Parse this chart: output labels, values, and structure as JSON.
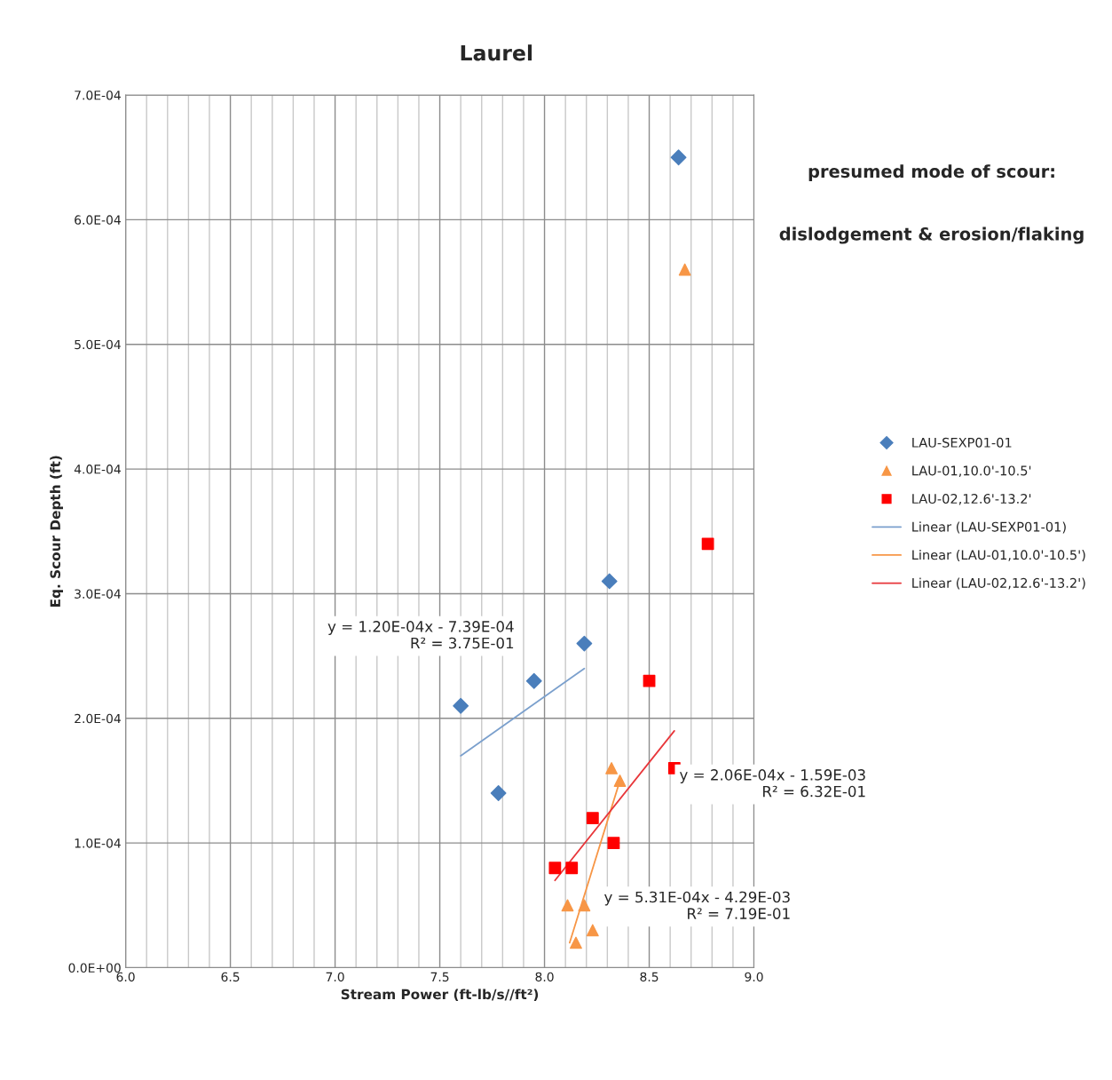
{
  "chart_data": {
    "type": "scatter",
    "title": "Laurel",
    "xlabel": "Stream Power (ft-lb/s//ft²)",
    "ylabel": "Eq. Scour Depth (ft)",
    "xlim": [
      6.0,
      9.0
    ],
    "xticks": [
      {
        "value": 6.0,
        "label": "6.0"
      },
      6.5,
      {
        "value": 7.0,
        "label": "7.0"
      },
      7.5,
      {
        "value": 8.0,
        "label": "8.0"
      },
      8.5,
      {
        "value": 9.0,
        "label": "9.0"
      }
    ],
    "ylim": [
      0,
      0.0007
    ],
    "yticks": [
      {
        "value": 0,
        "label": "0.0E+00"
      },
      {
        "value": 0.0001,
        "label": "1.0E-04"
      },
      {
        "value": 0.0002,
        "label": "2.0E-04"
      },
      {
        "value": 0.0003,
        "label": "3.0E-04"
      },
      {
        "value": 0.0004,
        "label": "4.0E-04"
      },
      {
        "value": 0.0005,
        "label": "5.0E-04"
      },
      {
        "value": 0.0006,
        "label": "6.0E-04"
      },
      {
        "value": 0.0007,
        "label": "7.0E-04"
      }
    ],
    "grid": true,
    "legend": "right",
    "series": [
      {
        "name": "LAU-SEXP01-01",
        "marker": "diamond",
        "color": "#4a7ebb",
        "x": [
          7.6,
          7.78,
          7.95,
          8.19
        ],
        "values": [
          0.00021,
          0.00014,
          0.00023,
          0.00026
        ]
      },
      {
        "name": "LAU-01,10.0'-10.5'",
        "marker": "triangle",
        "color": "#f79646",
        "x": [
          8.32,
          8.36,
          8.11,
          8.19,
          8.15,
          8.23
        ],
        "values": [
          0.00016,
          0.00015,
          5e-05,
          5e-05,
          2e-05,
          3e-05
        ]
      },
      {
        "name": "LAU-02,12.6'-13.2'",
        "marker": "square",
        "color": "#ff0000",
        "x": [
          8.05,
          8.13,
          8.23,
          8.33,
          8.5,
          8.62,
          8.78
        ],
        "values": [
          8e-05,
          8e-05,
          0.00012,
          0.0001,
          0.00023,
          0.00016,
          0.00034
        ]
      },
      {
        "marker": "diamond",
        "color": "#4a7ebb",
        "x": [
          8.31,
          8.64
        ],
        "values": [
          0.00031,
          0.00065
        ]
      },
      {
        "marker": "triangle",
        "color": "#f79646",
        "x": [
          8.67
        ],
        "values": [
          0.00056
        ]
      },
      {
        "name": "Linear (LAU-SEXP01-01)",
        "type": "line",
        "line_style": "solid",
        "color": "#7ba0cd",
        "x": [
          7.6,
          8.19
        ],
        "values": [
          0.00017,
          0.00024
        ]
      },
      {
        "name": "Linear (LAU-01,10.0'-10.5')",
        "type": "line",
        "line_style": "solid",
        "color": "#f79646",
        "x": [
          8.12,
          8.36
        ],
        "values": [
          2e-05,
          0.00015
        ]
      },
      {
        "name": "Linear (LAU-02,12.6'-13.2')",
        "type": "line",
        "line_style": "solid",
        "color": "#e8363a",
        "x": [
          8.05,
          8.62
        ],
        "values": [
          7e-05,
          0.00019
        ]
      }
    ],
    "annotations": [
      "presumed mode of scour:",
      "dislodgement & erosion/flaking",
      "y = 1.20E-04x - 7.39E-04\nR² = 3.75E-01",
      "y = 2.06E-04x - 1.59E-03\nR² = 6.32E-01",
      "y = 5.31E-04x - 4.29E-03\nR² = 7.19E-01"
    ]
  }
}
